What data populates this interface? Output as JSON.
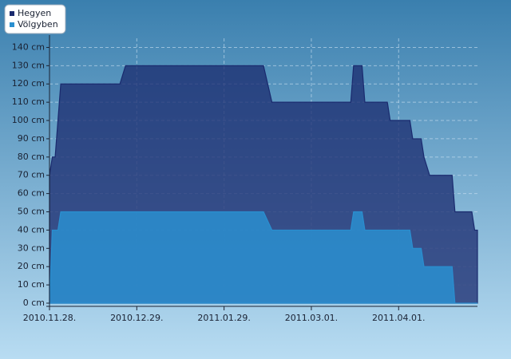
{
  "chart_data": {
    "type": "area",
    "x": [
      "2010-11-28",
      "2010-11-29",
      "2010-11-30",
      "2010-12-01",
      "2010-12-02",
      "2010-12-23",
      "2010-12-25",
      "2011-02-12",
      "2011-02-15",
      "2011-03-15",
      "2011-03-16",
      "2011-03-19",
      "2011-03-20",
      "2011-03-28",
      "2011-03-29",
      "2011-04-05",
      "2011-04-06",
      "2011-04-09",
      "2011-04-10",
      "2011-04-12",
      "2011-04-20",
      "2011-04-21",
      "2011-04-27",
      "2011-04-28",
      "2011-04-29"
    ],
    "series": [
      {
        "name": "Hegyen",
        "color": "#1a2a6e",
        "values": [
          70,
          80,
          80,
          100,
          120,
          120,
          130,
          130,
          110,
          110,
          130,
          130,
          110,
          110,
          100,
          100,
          90,
          90,
          80,
          70,
          70,
          50,
          50,
          40,
          40
        ]
      },
      {
        "name": "Völgyben",
        "color": "#2a8fd0",
        "values": [
          0,
          40,
          40,
          40,
          50,
          50,
          50,
          50,
          40,
          40,
          50,
          50,
          40,
          40,
          40,
          40,
          30,
          30,
          20,
          20,
          20,
          0,
          0,
          0,
          0
        ]
      }
    ],
    "xlim": [
      "2010-11-28",
      "2011-04-29"
    ],
    "xticks": [
      {
        "value": "2010-11-28",
        "label": "2010.11.28."
      },
      {
        "value": "2010-12-29",
        "label": "2010.12.29."
      },
      {
        "value": "2011-01-29",
        "label": "2011.01.29."
      },
      {
        "value": "2011-03-01",
        "label": "2011.03.01."
      },
      {
        "value": "2011-04-01",
        "label": "2011.04.01."
      }
    ],
    "ylim": [
      0,
      145
    ],
    "yticks": [
      {
        "value": 0,
        "label": "0 cm"
      },
      {
        "value": 10,
        "label": "10 cm"
      },
      {
        "value": 20,
        "label": "20 cm"
      },
      {
        "value": 30,
        "label": "30 cm"
      },
      {
        "value": 40,
        "label": "40 cm"
      },
      {
        "value": 50,
        "label": "50 cm"
      },
      {
        "value": 60,
        "label": "60 cm"
      },
      {
        "value": 70,
        "label": "70 cm"
      },
      {
        "value": 80,
        "label": "80 cm"
      },
      {
        "value": 90,
        "label": "90 cm"
      },
      {
        "value": 100,
        "label": "100 cm"
      },
      {
        "value": 110,
        "label": "110 cm"
      },
      {
        "value": 120,
        "label": "120 cm"
      },
      {
        "value": 130,
        "label": "130 cm"
      },
      {
        "value": 140,
        "label": "140 cm"
      }
    ],
    "grid": true,
    "legend": "top-left"
  }
}
